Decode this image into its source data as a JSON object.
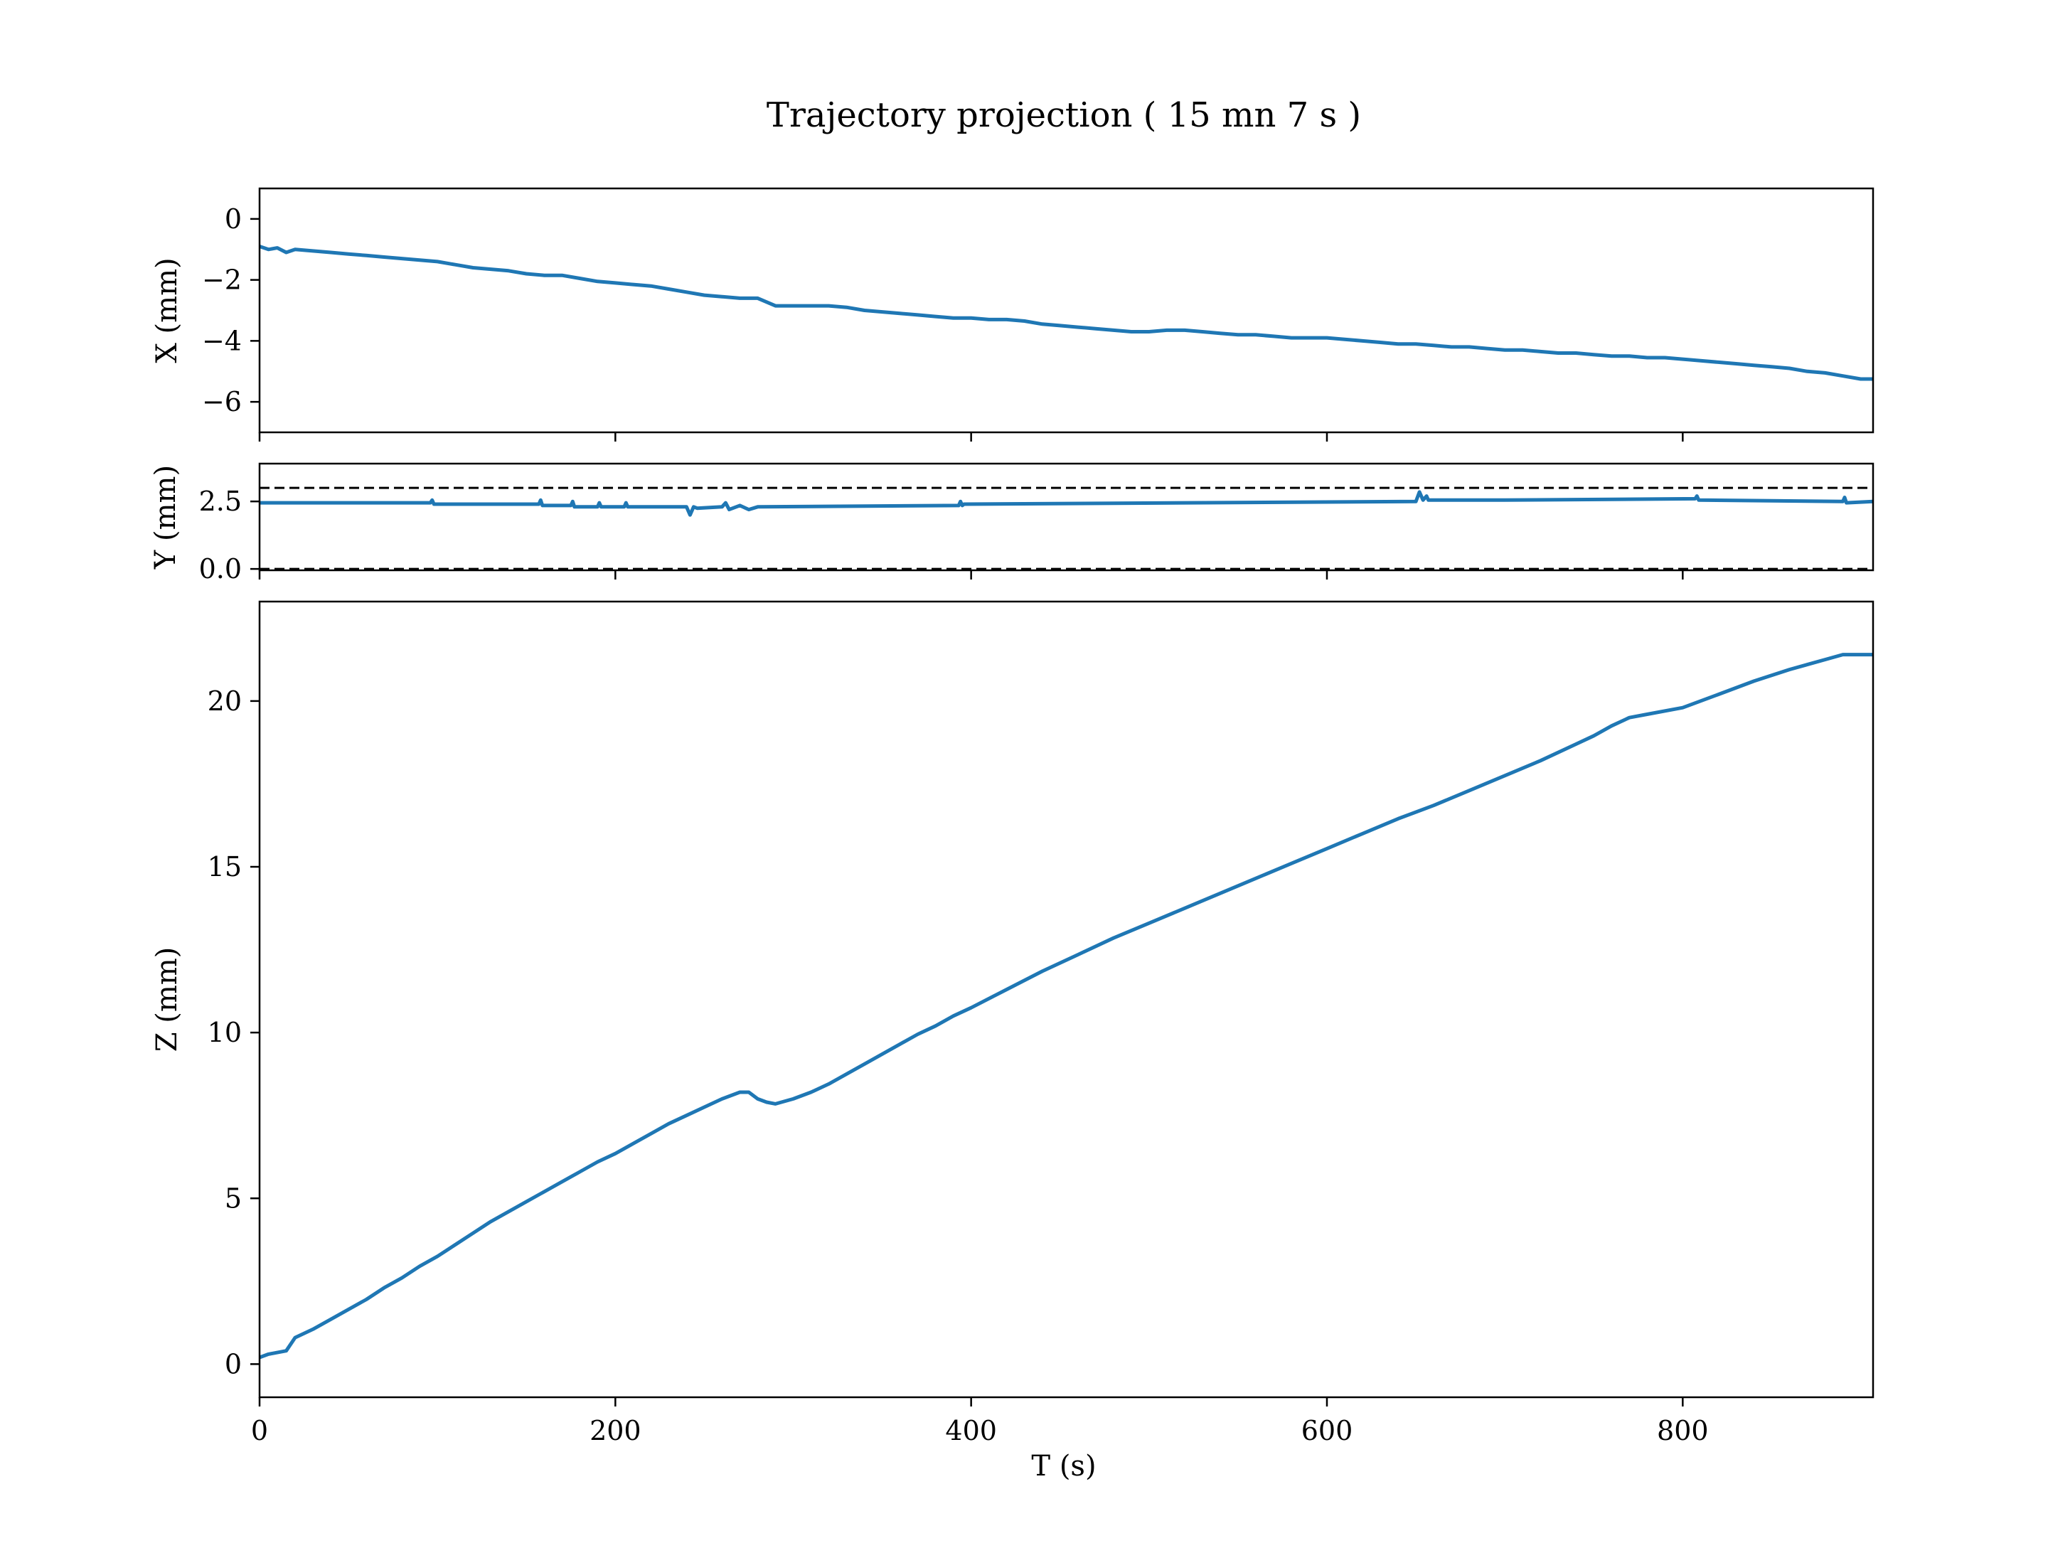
{
  "chart_data": {
    "type": "line",
    "title": "Trajectory projection ( 15 mn 7 s )",
    "xlabel": "T (s)",
    "xlim": [
      0,
      907
    ],
    "x_ticks": [
      0,
      200,
      400,
      600,
      800
    ],
    "x_tick_labels": [
      "0",
      "200",
      "400",
      "600",
      "800"
    ],
    "line_color": "#1f77b4",
    "reference_line_color": "#000000",
    "grid": false,
    "panels": [
      {
        "id": "x",
        "ylabel": "X (mm)",
        "ylim": [
          -7,
          1
        ],
        "y_ticks": [
          0,
          -2,
          -4,
          -6
        ],
        "y_tick_labels": [
          "0",
          "−2",
          "−4",
          "−6"
        ],
        "reference_lines": [],
        "series": [
          {
            "x": [
              0,
              5,
              10,
              15,
              20,
              30,
              40,
              50,
              60,
              70,
              80,
              90,
              100,
              110,
              120,
              130,
              140,
              150,
              160,
              170,
              180,
              190,
              200,
              210,
              220,
              230,
              240,
              250,
              260,
              270,
              280,
              290,
              300,
              310,
              320,
              330,
              340,
              350,
              360,
              370,
              380,
              390,
              400,
              410,
              420,
              430,
              440,
              450,
              460,
              470,
              480,
              490,
              500,
              510,
              520,
              530,
              540,
              550,
              560,
              570,
              580,
              590,
              600,
              610,
              620,
              630,
              640,
              650,
              660,
              670,
              680,
              690,
              700,
              710,
              720,
              730,
              740,
              750,
              760,
              770,
              780,
              790,
              800,
              810,
              820,
              830,
              840,
              850,
              860,
              870,
              880,
              890,
              900,
              907
            ],
            "y": [
              -0.9,
              -1.0,
              -0.95,
              -1.1,
              -1.0,
              -1.05,
              -1.1,
              -1.15,
              -1.2,
              -1.25,
              -1.3,
              -1.35,
              -1.4,
              -1.5,
              -1.6,
              -1.65,
              -1.7,
              -1.8,
              -1.85,
              -1.85,
              -1.95,
              -2.05,
              -2.1,
              -2.15,
              -2.2,
              -2.3,
              -2.4,
              -2.5,
              -2.55,
              -2.6,
              -2.6,
              -2.85,
              -2.85,
              -2.85,
              -2.85,
              -2.9,
              -3.0,
              -3.05,
              -3.1,
              -3.15,
              -3.2,
              -3.25,
              -3.25,
              -3.3,
              -3.3,
              -3.35,
              -3.45,
              -3.5,
              -3.55,
              -3.6,
              -3.65,
              -3.7,
              -3.7,
              -3.65,
              -3.65,
              -3.7,
              -3.75,
              -3.8,
              -3.8,
              -3.85,
              -3.9,
              -3.9,
              -3.9,
              -3.95,
              -4.0,
              -4.05,
              -4.1,
              -4.1,
              -4.15,
              -4.2,
              -4.2,
              -4.25,
              -4.3,
              -4.3,
              -4.35,
              -4.4,
              -4.4,
              -4.45,
              -4.5,
              -4.5,
              -4.55,
              -4.55,
              -4.6,
              -4.65,
              -4.7,
              -4.75,
              -4.8,
              -4.85,
              -4.9,
              -5.0,
              -5.05,
              -5.15,
              -5.25,
              -5.25
            ]
          }
        ]
      },
      {
        "id": "y",
        "ylabel": "Y (mm)",
        "ylim": [
          -0.05,
          3.9
        ],
        "y_ticks": [
          2.5,
          0.0
        ],
        "y_tick_labels": [
          "2.5",
          "0.0"
        ],
        "reference_lines": [
          3.0,
          0.0
        ],
        "series": [
          {
            "x": [
              0,
              96,
              97,
              98,
              157,
              158,
              159,
              175,
              176,
              177,
              190,
              191,
              192,
              205,
              206,
              207,
              240,
              242,
              244,
              246,
              260,
              262,
              264,
              270,
              275,
              280,
              393,
              394,
              395,
              396,
              650,
              652,
              654,
              656,
              657,
              700,
              807,
              808,
              809,
              890,
              891,
              892,
              907
            ],
            "y": [
              2.45,
              2.45,
              2.55,
              2.4,
              2.4,
              2.55,
              2.35,
              2.35,
              2.5,
              2.3,
              2.3,
              2.45,
              2.3,
              2.3,
              2.45,
              2.3,
              2.3,
              2.0,
              2.3,
              2.25,
              2.3,
              2.45,
              2.2,
              2.35,
              2.2,
              2.3,
              2.35,
              2.5,
              2.35,
              2.4,
              2.5,
              2.85,
              2.55,
              2.7,
              2.55,
              2.55,
              2.6,
              2.7,
              2.55,
              2.5,
              2.65,
              2.45,
              2.5
            ]
          }
        ]
      },
      {
        "id": "z",
        "ylabel": "Z (mm)",
        "ylim": [
          -1,
          23
        ],
        "y_ticks": [
          0,
          5,
          10,
          15,
          20
        ],
        "y_tick_labels": [
          "0",
          "5",
          "10",
          "15",
          "20"
        ],
        "reference_lines": [],
        "series": [
          {
            "x": [
              0,
              5,
              10,
              15,
              20,
              30,
              40,
              50,
              60,
              70,
              80,
              90,
              100,
              110,
              120,
              130,
              140,
              150,
              160,
              170,
              180,
              190,
              200,
              210,
              220,
              230,
              240,
              250,
              260,
              270,
              275,
              280,
              285,
              290,
              300,
              310,
              320,
              330,
              340,
              350,
              360,
              370,
              380,
              390,
              400,
              420,
              440,
              460,
              480,
              500,
              520,
              540,
              560,
              580,
              600,
              620,
              640,
              660,
              680,
              700,
              720,
              740,
              750,
              760,
              770,
              780,
              800,
              820,
              840,
              860,
              880,
              890,
              900,
              907
            ],
            "y": [
              0.2,
              0.3,
              0.35,
              0.4,
              0.8,
              1.05,
              1.35,
              1.65,
              1.95,
              2.3,
              2.6,
              2.95,
              3.25,
              3.6,
              3.95,
              4.3,
              4.6,
              4.9,
              5.2,
              5.5,
              5.8,
              6.1,
              6.35,
              6.65,
              6.95,
              7.25,
              7.5,
              7.75,
              8.0,
              8.2,
              8.2,
              8.0,
              7.9,
              7.85,
              8.0,
              8.2,
              8.45,
              8.75,
              9.05,
              9.35,
              9.65,
              9.95,
              10.2,
              10.5,
              10.75,
              11.3,
              11.85,
              12.35,
              12.85,
              13.3,
              13.75,
              14.2,
              14.65,
              15.1,
              15.55,
              16.0,
              16.45,
              16.85,
              17.3,
              17.75,
              18.2,
              18.7,
              18.95,
              19.25,
              19.5,
              19.6,
              19.8,
              20.2,
              20.6,
              20.95,
              21.25,
              21.4,
              21.4,
              21.4
            ]
          }
        ]
      }
    ]
  }
}
